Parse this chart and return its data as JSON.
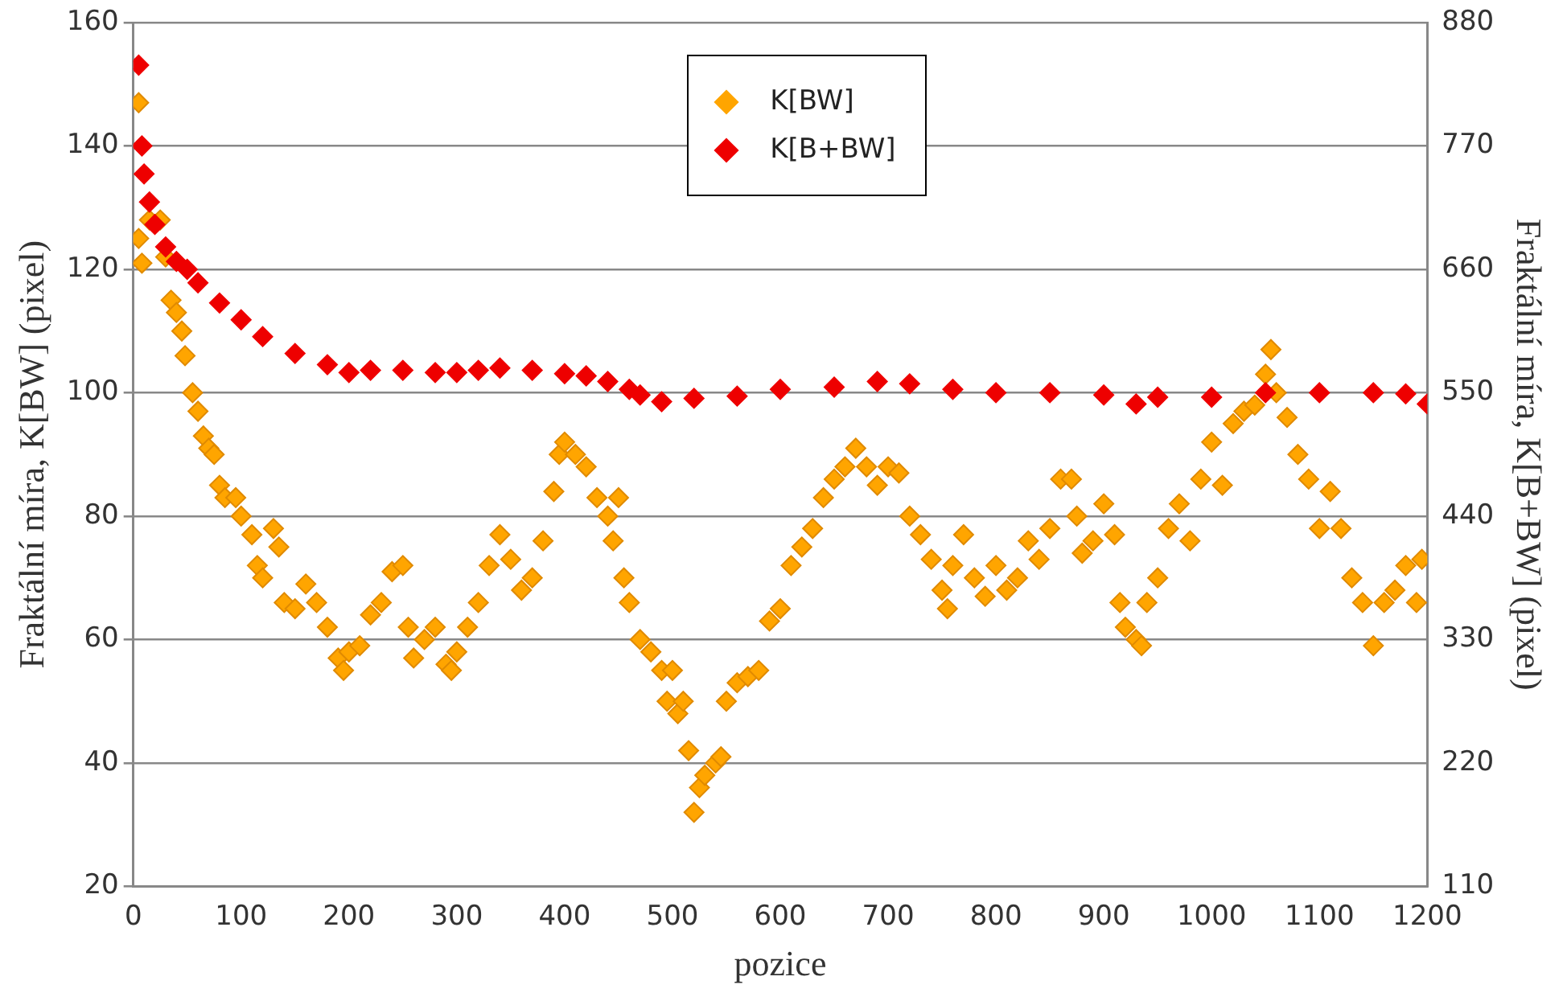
{
  "chart_data": {
    "type": "scatter",
    "xlabel": "pozice",
    "ylabel": "Fraktální míra, K[BW] (pixel)",
    "y2label": "Fraktální míra, K[B+BW] (pixel)",
    "xlim": [
      0,
      1200
    ],
    "xticks": [
      0,
      100,
      200,
      300,
      400,
      500,
      600,
      700,
      800,
      900,
      1000,
      1100,
      1200
    ],
    "ylim": [
      20,
      160
    ],
    "yticks": [
      20,
      40,
      60,
      80,
      100,
      120,
      140,
      160
    ],
    "y2lim": [
      110,
      880
    ],
    "y2ticks": [
      110,
      220,
      330,
      440,
      550,
      660,
      770,
      880
    ],
    "grid": "y",
    "legend": "top",
    "marker": "diamond",
    "series": [
      {
        "name": "K[BW]",
        "color": "#ffa500",
        "x": [
          5,
          5,
          8,
          15,
          25,
          30,
          35,
          40,
          45,
          48,
          55,
          60,
          65,
          70,
          75,
          80,
          85,
          95,
          100,
          110,
          115,
          120,
          130,
          135,
          140,
          150,
          160,
          170,
          180,
          190,
          195,
          200,
          210,
          220,
          230,
          240,
          250,
          255,
          260,
          270,
          280,
          290,
          295,
          300,
          310,
          320,
          330,
          340,
          350,
          360,
          370,
          380,
          390,
          395,
          400,
          410,
          420,
          430,
          440,
          445,
          450,
          455,
          460,
          470,
          480,
          490,
          495,
          500,
          505,
          510,
          515,
          520,
          525,
          530,
          540,
          545,
          550,
          560,
          570,
          580,
          590,
          600,
          610,
          620,
          630,
          640,
          650,
          660,
          670,
          680,
          690,
          700,
          710,
          720,
          730,
          740,
          750,
          755,
          760,
          770,
          780,
          790,
          800,
          810,
          820,
          830,
          840,
          850,
          860,
          870,
          875,
          880,
          890,
          900,
          910,
          915,
          920,
          930,
          935,
          940,
          950,
          960,
          970,
          980,
          990,
          1000,
          1010,
          1020,
          1030,
          1040,
          1050,
          1055,
          1060,
          1070,
          1080,
          1090,
          1100,
          1110,
          1120,
          1130,
          1140,
          1150,
          1160,
          1170,
          1180,
          1190,
          1195
        ],
        "values": [
          147,
          125,
          121,
          128,
          128,
          122,
          115,
          113,
          110,
          106,
          100,
          97,
          93,
          91,
          90,
          85,
          83,
          83,
          80,
          77,
          72,
          70,
          78,
          75,
          66,
          65,
          69,
          66,
          62,
          57,
          55,
          58,
          59,
          64,
          66,
          71,
          72,
          62,
          57,
          60,
          62,
          56,
          55,
          58,
          62,
          66,
          72,
          77,
          73,
          68,
          70,
          76,
          84,
          90,
          92,
          90,
          88,
          83,
          80,
          76,
          83,
          70,
          66,
          60,
          58,
          55,
          50,
          55,
          48,
          50,
          42,
          32,
          36,
          38,
          40,
          41,
          50,
          53,
          54,
          55,
          63,
          65,
          72,
          75,
          78,
          83,
          86,
          88,
          91,
          88,
          85,
          88,
          87,
          80,
          77,
          73,
          68,
          65,
          72,
          77,
          70,
          67,
          72,
          68,
          70,
          76,
          73,
          78,
          86,
          86,
          80,
          74,
          76,
          82,
          77,
          66,
          62,
          60,
          59,
          66,
          70,
          78,
          82,
          76,
          86,
          92,
          85,
          95,
          97,
          98,
          103,
          107,
          100,
          96,
          90,
          86,
          78,
          84,
          78,
          70,
          66,
          59,
          66,
          68,
          72,
          66,
          73
        ]
      },
      {
        "name": "K[B+BW]",
        "color": "#ee0000",
        "axis": "y2",
        "x": [
          5,
          8,
          10,
          15,
          20,
          30,
          40,
          50,
          60,
          80,
          100,
          120,
          150,
          180,
          200,
          220,
          250,
          280,
          300,
          320,
          340,
          370,
          400,
          420,
          440,
          460,
          470,
          490,
          520,
          560,
          600,
          650,
          690,
          720,
          760,
          800,
          850,
          900,
          930,
          950,
          1000,
          1050,
          1100,
          1150,
          1180,
          1200
        ],
        "values": [
          842,
          770,
          745,
          720,
          700,
          680,
          667,
          660,
          648,
          630,
          615,
          600,
          585,
          575,
          568,
          570,
          570,
          568,
          568,
          570,
          572,
          570,
          567,
          565,
          560,
          553,
          548,
          542,
          545,
          547,
          553,
          555,
          560,
          558,
          553,
          550,
          550,
          548,
          540,
          546,
          546,
          550,
          550,
          550,
          549,
          540
        ]
      }
    ]
  }
}
